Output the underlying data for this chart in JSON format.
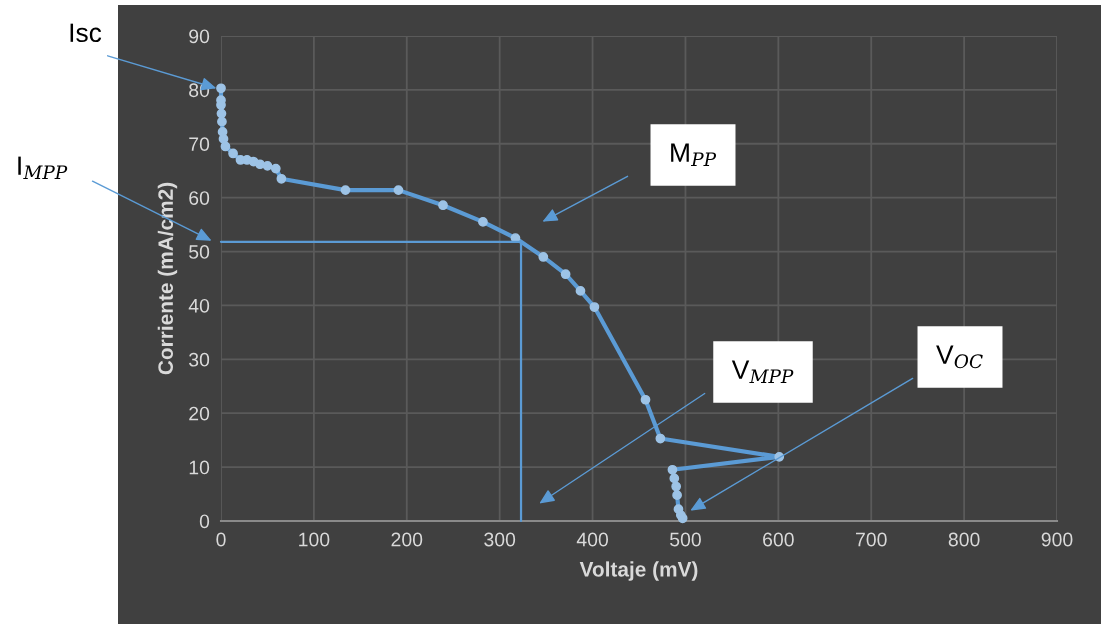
{
  "chart_data": {
    "type": "line",
    "xlabel": "Voltaje (mV)",
    "ylabel": "Corriente (mA/cm2)",
    "xlim": [
      0,
      900
    ],
    "xticks": [
      0,
      100,
      200,
      300,
      400,
      500,
      600,
      700,
      800,
      900
    ],
    "ylim": [
      0,
      90
    ],
    "yticks": [
      0,
      10,
      20,
      30,
      40,
      50,
      60,
      70,
      80,
      90
    ],
    "grid": true,
    "marker": "circle",
    "line_style": "solid",
    "series": [
      {
        "color": "#5b9bd5",
        "x": [
          0,
          0,
          0,
          0.5,
          1,
          1.7,
          2.7,
          4.8,
          13,
          21,
          28,
          35,
          42,
          50,
          59,
          65,
          134,
          191,
          239,
          282,
          317,
          347,
          371,
          387,
          402,
          457,
          473,
          601,
          486,
          488,
          490,
          491,
          492.5,
          495,
          497
        ],
        "values": [
          80.3,
          78.1,
          77.2,
          75.6,
          74.1,
          72.2,
          70.9,
          69.5,
          68.2,
          67.0,
          67.0,
          66.7,
          66.2,
          65.9,
          65.4,
          63.5,
          61.4,
          61.4,
          58.6,
          55.5,
          52.5,
          49,
          45.8,
          42.7,
          39.7,
          22.5,
          15.3,
          11.9,
          9.5,
          7.9,
          6.4,
          4.8,
          2.2,
          1.1,
          0.5
        ]
      },
      {
        "color": "#5b9bd5",
        "marker": "none",
        "x": [
          0,
          323,
          323
        ],
        "values": [
          51.8,
          51.8,
          0
        ]
      }
    ],
    "annotations": [
      "Isc",
      "I$_{MPP}$",
      "M$_{PP}$",
      "V$_{MPP}$",
      "V$_{OC}$"
    ]
  }
}
